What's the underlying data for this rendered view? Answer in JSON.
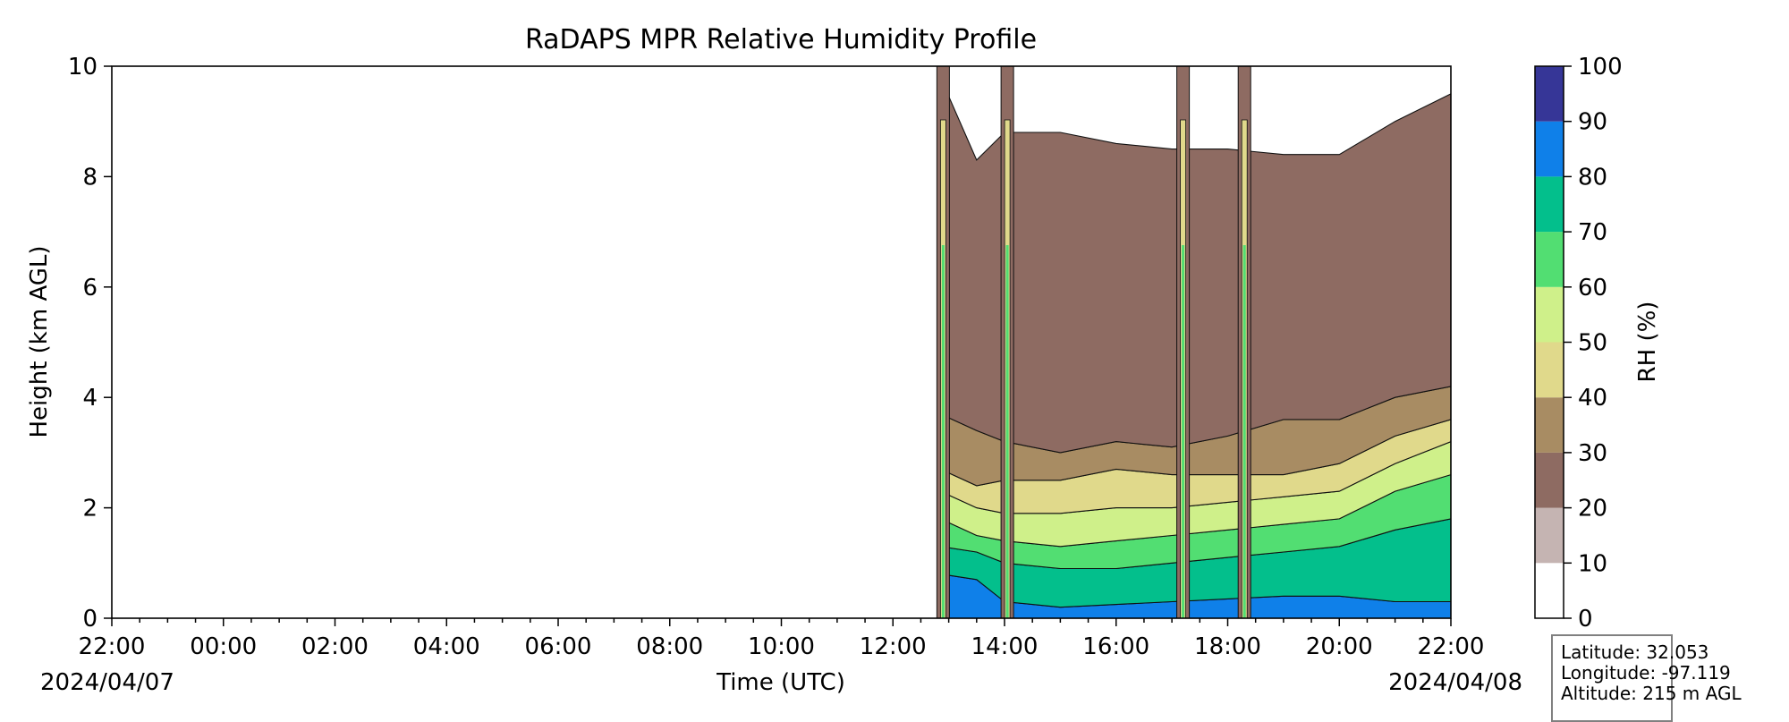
{
  "chart_data": {
    "type": "heatmap",
    "title": "RaDAPS MPR Relative Humidity Profile",
    "xlabel": "Time (UTC)",
    "ylabel": "Height (km AGL)",
    "x_start_date": "2024/04/07",
    "x_end_date": "2024/04/08",
    "x_range_hours": [
      0,
      24
    ],
    "x_tick_labels": [
      "22:00",
      "00:00",
      "02:00",
      "04:00",
      "06:00",
      "08:00",
      "10:00",
      "12:00",
      "14:00",
      "16:00",
      "18:00",
      "20:00",
      "22:00"
    ],
    "ylim": [
      0,
      10
    ],
    "y_tick_labels": [
      "0",
      "2",
      "4",
      "6",
      "8",
      "10"
    ],
    "colorbar": {
      "label": "RH (%)",
      "levels": [
        0,
        10,
        20,
        30,
        40,
        50,
        60,
        70,
        80,
        90,
        100
      ],
      "tick_labels": [
        "0",
        "10",
        "20",
        "30",
        "40",
        "50",
        "60",
        "70",
        "80",
        "90",
        "100"
      ],
      "colors": [
        "#ffffff",
        "#c5b4b2",
        "#8e6b62",
        "#a88c63",
        "#e0d98b",
        "#cff08a",
        "#52de72",
        "#03bf8c",
        "#0f80e9",
        "#363697"
      ]
    },
    "data_start_hour": 14.85,
    "profiles": [
      {
        "hour": 14.85,
        "boundaries_km": [
          0.8,
          1.3,
          1.8,
          2.3,
          2.7,
          3.7,
          9.8
        ]
      },
      {
        "hour": 15.5,
        "boundaries_km": [
          0.7,
          1.2,
          1.5,
          2.0,
          2.4,
          3.4,
          8.3
        ]
      },
      {
        "hour": 16.0,
        "boundaries_km": [
          0.3,
          1.0,
          1.4,
          1.9,
          2.5,
          3.2,
          8.8
        ]
      },
      {
        "hour": 17.0,
        "boundaries_km": [
          0.2,
          0.9,
          1.3,
          1.9,
          2.5,
          3.0,
          8.8
        ]
      },
      {
        "hour": 18.0,
        "boundaries_km": [
          0.25,
          0.9,
          1.4,
          2.0,
          2.7,
          3.2,
          8.6
        ]
      },
      {
        "hour": 19.0,
        "boundaries_km": [
          0.3,
          1.0,
          1.5,
          2.0,
          2.6,
          3.1,
          8.5
        ]
      },
      {
        "hour": 20.0,
        "boundaries_km": [
          0.35,
          1.1,
          1.6,
          2.1,
          2.6,
          3.3,
          8.5
        ]
      },
      {
        "hour": 21.0,
        "boundaries_km": [
          0.4,
          1.2,
          1.7,
          2.2,
          2.6,
          3.6,
          8.4
        ]
      },
      {
        "hour": 22.0,
        "boundaries_km": [
          0.4,
          1.3,
          1.8,
          2.3,
          2.8,
          3.6,
          8.4
        ]
      },
      {
        "hour": 23.0,
        "boundaries_km": [
          0.3,
          1.6,
          2.3,
          2.8,
          3.3,
          4.0,
          9.0
        ]
      },
      {
        "hour": 24.0,
        "boundaries_km": [
          0.3,
          1.8,
          2.6,
          3.2,
          3.6,
          4.2,
          9.5
        ]
      }
    ],
    "moist_columns_hours": [
      14.9,
      16.05,
      19.2,
      20.3
    ]
  },
  "info": {
    "latitude": "Latitude: 32.053",
    "longitude": "Longitude: -97.119",
    "altitude": "Altitude: 215 m AGL"
  }
}
